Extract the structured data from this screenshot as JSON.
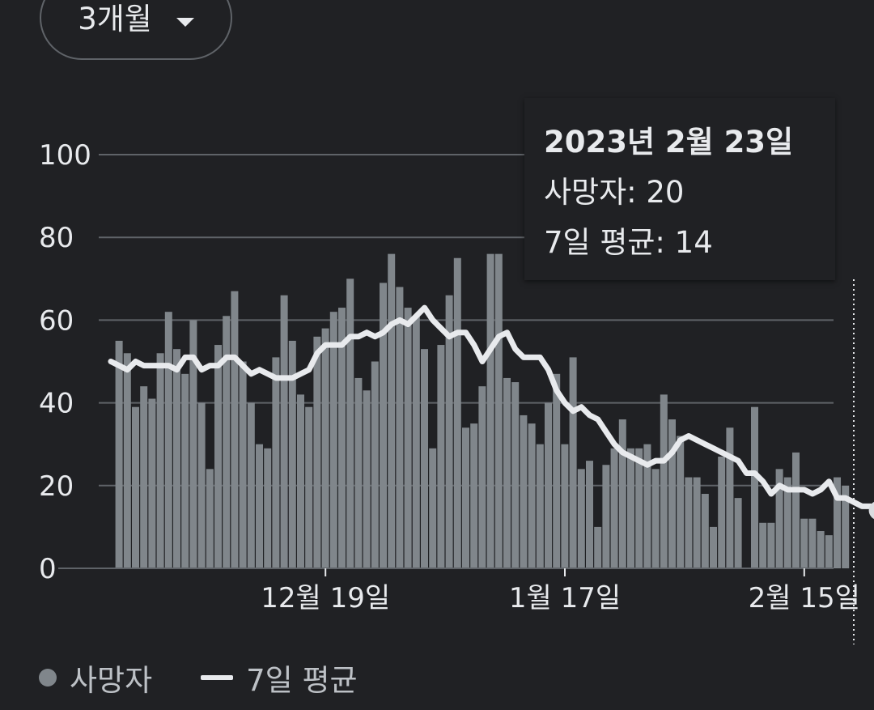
{
  "range_selector": {
    "label": "3개월",
    "icon": "arrow-drop-down-icon"
  },
  "tooltip": {
    "date": "2023년 2월 23일",
    "deaths_label": "사망자: 20",
    "avg_label": "7일 평균: 14"
  },
  "legend": {
    "deaths": "사망자",
    "avg": "7일 평균"
  },
  "colors": {
    "background": "#202124",
    "bars": "#80868b",
    "avg_line": "#e8eaed",
    "grid": "#5f6368",
    "text": "#e8eaed"
  },
  "chart_data": {
    "type": "bar",
    "ylim": [
      0,
      100
    ],
    "y_ticks": [
      "0",
      "20",
      "40",
      "60",
      "80",
      "100"
    ],
    "x_tick_labels": [
      "12월 19일",
      "1월 17일",
      "2월 15일"
    ],
    "x_tick_positions": [
      26,
      55,
      84
    ],
    "highlighted_index": 90,
    "series": [
      {
        "name": "사망자",
        "type": "bar",
        "values": [
          55,
          52,
          39,
          44,
          41,
          52,
          62,
          53,
          47,
          60,
          40,
          24,
          54,
          61,
          67,
          50,
          40,
          30,
          29,
          51,
          66,
          55,
          42,
          39,
          56,
          58,
          62,
          63,
          70,
          46,
          43,
          50,
          69,
          76,
          68,
          63,
          61,
          53,
          29,
          54,
          66,
          75,
          34,
          35,
          44,
          76,
          76,
          46,
          45,
          37,
          35,
          30,
          40,
          47,
          30,
          51,
          24,
          26,
          10,
          25,
          29,
          36,
          29,
          29,
          30,
          24,
          42,
          36,
          32,
          22,
          22,
          18,
          10,
          27,
          34,
          17,
          0,
          39,
          11,
          11,
          24,
          22,
          28,
          12,
          12,
          9,
          8,
          22,
          20
        ],
        "start_index": 1
      },
      {
        "name": "7일 평균",
        "type": "line",
        "values": [
          50,
          49,
          48,
          50,
          49,
          49,
          49,
          49,
          48,
          51,
          51,
          48,
          49,
          49,
          51,
          51,
          49,
          47,
          48,
          47,
          46,
          46,
          46,
          47,
          48,
          52,
          54,
          54,
          54,
          56,
          56,
          57,
          56,
          57,
          59,
          60,
          59,
          61,
          63,
          60,
          58,
          56,
          57,
          57,
          54,
          50,
          53,
          56,
          57,
          53,
          51,
          51,
          51,
          48,
          43,
          40,
          38,
          39,
          37,
          36,
          33,
          30,
          28,
          27,
          26,
          25,
          26,
          26,
          28,
          31,
          32,
          31,
          30,
          29,
          28,
          27,
          26,
          23,
          23,
          21,
          18,
          20,
          19,
          19,
          19,
          18,
          19,
          21,
          17,
          17,
          16,
          15,
          15,
          14
        ]
      }
    ]
  }
}
